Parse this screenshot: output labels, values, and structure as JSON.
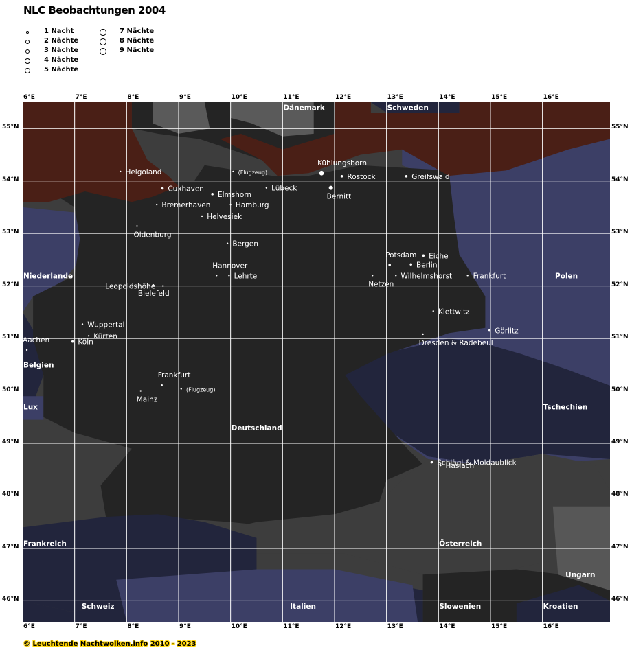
{
  "title": "NLC Beobachtungen 2004",
  "legend": [
    {
      "nights": 1,
      "label": "1 Nacht"
    },
    {
      "nights": 2,
      "label": "2 Nächte"
    },
    {
      "nights": 3,
      "label": "3 Nächte"
    },
    {
      "nights": 4,
      "label": "4 Nächte"
    },
    {
      "nights": 5,
      "label": "5 Nächte"
    },
    {
      "nights": 7,
      "label": "7 Nächte"
    },
    {
      "nights": 8,
      "label": "8 Nächte"
    },
    {
      "nights": 9,
      "label": "9 Nächte"
    }
  ],
  "axes": {
    "lon_range": [
      6,
      17.3
    ],
    "lat_range": [
      45.6,
      55.5
    ],
    "lon_ticks": [
      {
        "value": 6,
        "label": "6°E"
      },
      {
        "value": 7,
        "label": "7°E"
      },
      {
        "value": 8,
        "label": "8°E"
      },
      {
        "value": 9,
        "label": "9°E"
      },
      {
        "value": 10,
        "label": "10°E"
      },
      {
        "value": 11,
        "label": "11°E"
      },
      {
        "value": 12,
        "label": "12°E"
      },
      {
        "value": 13,
        "label": "13°E"
      },
      {
        "value": 14,
        "label": "14°E"
      },
      {
        "value": 15,
        "label": "15°E"
      },
      {
        "value": 16,
        "label": "16°E"
      }
    ],
    "lat_ticks": [
      {
        "value": 55,
        "label": "55°N"
      },
      {
        "value": 54,
        "label": "54°N"
      },
      {
        "value": 53,
        "label": "53°N"
      },
      {
        "value": 52,
        "label": "52°N"
      },
      {
        "value": 51,
        "label": "51°N"
      },
      {
        "value": 50,
        "label": "50°N"
      },
      {
        "value": 49,
        "label": "49°N"
      },
      {
        "value": 48,
        "label": "48°N"
      },
      {
        "value": 47,
        "label": "47°N"
      },
      {
        "value": 46,
        "label": "46°N"
      }
    ]
  },
  "colors": {
    "sea": "#4a1f16",
    "germany": "#242424",
    "grey_land": "#3d3d3d",
    "scandinavia_grey": "#5a5a5a",
    "eastern_blue": "#3c3f66",
    "dark_blue": "#22253c",
    "grid": "#ffffff",
    "text": "#ffffff"
  },
  "observations": [
    {
      "name": "Helgoland",
      "lon": 7.88,
      "lat": 54.18,
      "nights": 1
    },
    {
      "name": "(Flugzeug)",
      "lon": 10.05,
      "lat": 54.18,
      "nights": 1,
      "small": true
    },
    {
      "name": "Kühlungsborn",
      "lon": 11.75,
      "lat": 54.15,
      "nights": 8
    },
    {
      "name": "Rostock",
      "lon": 12.14,
      "lat": 54.09,
      "nights": 3
    },
    {
      "name": "Greifswald",
      "lon": 13.38,
      "lat": 54.09,
      "nights": 2
    },
    {
      "name": "Lübeck",
      "lon": 10.69,
      "lat": 53.87,
      "nights": 1
    },
    {
      "name": "Bernitt",
      "lon": 11.93,
      "lat": 53.87,
      "nights": 7
    },
    {
      "name": "Cuxhaven",
      "lon": 8.69,
      "lat": 53.86,
      "nights": 2
    },
    {
      "name": "Elmshorn",
      "lon": 9.65,
      "lat": 53.75,
      "nights": 2
    },
    {
      "name": "Bremerhaven",
      "lon": 8.58,
      "lat": 53.55,
      "nights": 1
    },
    {
      "name": "Hamburg",
      "lon": 10.0,
      "lat": 53.55,
      "nights": 1
    },
    {
      "name": "Helvesiek",
      "lon": 9.45,
      "lat": 53.33,
      "nights": 1
    },
    {
      "name": "Oldenburg",
      "lon": 8.2,
      "lat": 53.14,
      "nights": 1
    },
    {
      "name": "Bergen",
      "lon": 9.94,
      "lat": 52.81,
      "nights": 1
    },
    {
      "name": "Potsdam",
      "lon": 13.06,
      "lat": 52.4,
      "nights": 3
    },
    {
      "name": "Eiche",
      "lon": 13.71,
      "lat": 52.58,
      "nights": 3
    },
    {
      "name": "Berlin",
      "lon": 13.47,
      "lat": 52.41,
      "nights": 2
    },
    {
      "name": "Hannover",
      "lon": 9.73,
      "lat": 52.2,
      "nights": 1,
      "label_above": true
    },
    {
      "name": "Leopoldshöhe",
      "lon": 8.7,
      "lat": 52.0,
      "nights": 1,
      "label_above_left": true
    },
    {
      "name": "Lehrte",
      "lon": 9.97,
      "lat": 52.2,
      "nights": 1
    },
    {
      "name": "Netzen",
      "lon": 12.73,
      "lat": 52.2,
      "nights": 1
    },
    {
      "name": "Wilhelmshorst",
      "lon": 13.18,
      "lat": 52.2,
      "nights": 1
    },
    {
      "name": "Frankfurt",
      "lon": 14.56,
      "lat": 52.2,
      "nights": 1
    },
    {
      "name": "Bielefeld",
      "lon": 8.51,
      "lat": 52.02,
      "nights": 1
    },
    {
      "name": "Klettwitz",
      "lon": 13.9,
      "lat": 51.52,
      "nights": 1
    },
    {
      "name": "Wuppertal",
      "lon": 7.15,
      "lat": 51.27,
      "nights": 1
    },
    {
      "name": "Kürten",
      "lon": 7.27,
      "lat": 51.05,
      "nights": 1
    },
    {
      "name": "Aachen",
      "lon": 6.08,
      "lat": 50.78,
      "nights": 1
    },
    {
      "name": "Köln",
      "lon": 6.96,
      "lat": 50.94,
      "nights": 2
    },
    {
      "name": "Dresden & Radebeul",
      "lon": 13.7,
      "lat": 51.08,
      "nights": 1
    },
    {
      "name": "Görlitz",
      "lon": 14.98,
      "lat": 51.15,
      "nights": 3
    },
    {
      "name": "Frankfurt",
      "lon": 8.68,
      "lat": 50.11,
      "nights": 1
    },
    {
      "name": "(Flugzeug)",
      "lon": 9.05,
      "lat": 50.04,
      "nights": 1,
      "small": true
    },
    {
      "name": "Mainz",
      "lon": 8.27,
      "lat": 50.0,
      "nights": 1
    },
    {
      "name": "Schlägl & Moldaublick",
      "lon": 13.87,
      "lat": 48.64,
      "nights": 2
    },
    {
      "name": "Haslach",
      "lon": 14.04,
      "lat": 48.58,
      "nights": 1
    }
  ],
  "countries": [
    {
      "name": "Dänemark",
      "lon": 11.0,
      "lat": 55.4
    },
    {
      "name": "Schweden",
      "lon": 13.0,
      "lat": 55.4
    },
    {
      "name": "Niederlande",
      "lon": 6.0,
      "lat": 52.2
    },
    {
      "name": "Polen",
      "lon": 16.23,
      "lat": 52.2
    },
    {
      "name": "Belgien",
      "lon": 6.0,
      "lat": 50.5
    },
    {
      "name": "Lux",
      "lon": 6.0,
      "lat": 49.7
    },
    {
      "name": "Deutschland",
      "lon": 10.0,
      "lat": 49.3
    },
    {
      "name": "Tschechien",
      "lon": 16.0,
      "lat": 49.7
    },
    {
      "name": "Frankreich",
      "lon": 6.0,
      "lat": 47.1
    },
    {
      "name": "Österreich",
      "lon": 14.0,
      "lat": 47.1
    },
    {
      "name": "Ungarn",
      "lon": 16.43,
      "lat": 46.5
    },
    {
      "name": "Schweiz",
      "lon": 7.12,
      "lat": 45.9
    },
    {
      "name": "Italien",
      "lon": 11.13,
      "lat": 45.9
    },
    {
      "name": "Slowenien",
      "lon": 14.0,
      "lat": 45.9
    },
    {
      "name": "Kroatien",
      "lon": 16.0,
      "lat": 45.9
    }
  ],
  "footer": "© Leuchtende Nachtwolken.info 2010 - 2023"
}
